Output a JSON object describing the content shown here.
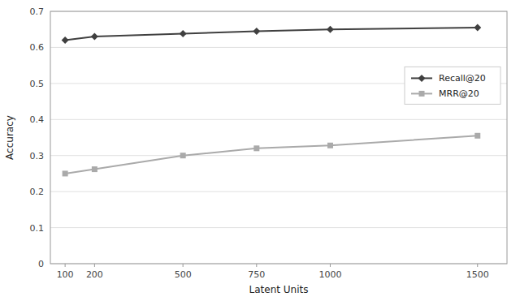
{
  "chart_data": {
    "type": "line",
    "x": [
      100,
      200,
      500,
      750,
      1000,
      1500
    ],
    "series": [
      {
        "name": "Recall@20",
        "color": "#404040",
        "marker": "diamond",
        "values": [
          0.62,
          0.63,
          0.638,
          0.645,
          0.65,
          0.655
        ]
      },
      {
        "name": "MRR@20",
        "color": "#aaaaaa",
        "marker": "square",
        "values": [
          0.25,
          0.262,
          0.3,
          0.32,
          0.328,
          0.355
        ]
      }
    ],
    "xlabel": "Latent Units",
    "ylabel": "Accuracy",
    "xlim": [
      50,
      1600
    ],
    "xticks": [
      100,
      200,
      500,
      750,
      1000,
      1500
    ],
    "ylim": [
      0,
      0.7
    ],
    "yticks": [
      0,
      0.1,
      0.2,
      0.3,
      0.4,
      0.5,
      0.6,
      0.7
    ],
    "grid": true,
    "legend": "right"
  }
}
